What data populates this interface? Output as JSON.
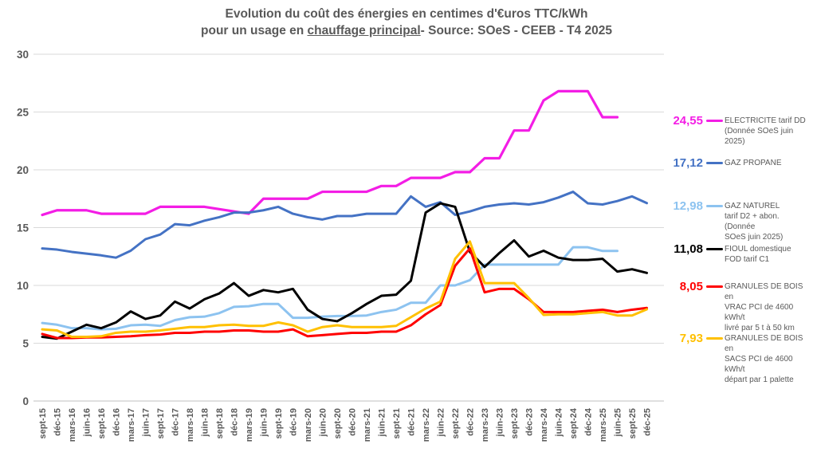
{
  "title": {
    "line1": "Evolution du coût des énergies en centimes d'€uros TTC/kWh",
    "line2_prefix": "pour un usage en ",
    "line2_underline": "chauffage principal",
    "line2_suffix": "- Source: SOeS - CEEB - T4 2025"
  },
  "colors": {
    "title_text": "#595959",
    "axis_text": "#595959",
    "gridline": "#d9d9d9",
    "axis_line": "#bfbfbf",
    "electricite": "#F31DE5",
    "gaz_propane": "#4472C4",
    "gaz_naturel": "#8DC3F0",
    "fioul": "#000000",
    "granules_vrac": "#FF0000",
    "granules_sacs": "#FFC000"
  },
  "legend": {
    "entries": [
      {
        "value": "24,55",
        "color": "#F31DE5",
        "label_lines": [
          "ELECTRICITE tarif DD",
          "(Donnée SOeS juin 2025)"
        ]
      },
      {
        "value": "17,12",
        "color": "#4472C4",
        "label_lines": [
          "GAZ PROPANE"
        ]
      },
      {
        "value": "12,98",
        "color": "#8DC3F0",
        "label_lines": [
          "GAZ NATUREL",
          "tarif D2 + abon. (Donnée",
          "SOeS juin 2025)"
        ]
      },
      {
        "value": "11,08",
        "color": "#000000",
        "label_lines": [
          "FIOUL domestique",
          "FOD tarif C1"
        ]
      },
      {
        "value": "8,05",
        "color": "#FF0000",
        "label_lines": [
          "GRANULES DE BOIS en",
          "VRAC  PCI de 4600 kWh/t",
          "livré par 5 t à 50 km"
        ]
      },
      {
        "value": "7,93",
        "color": "#FFC000",
        "label_lines": [
          "GRANULES DE BOIS en",
          "SACS PCI de 4600 kWh/t",
          "départ par 1 palette"
        ]
      }
    ]
  },
  "chart_data": {
    "type": "line",
    "title": "Evolution du coût des énergies en centimes d'€uros TTC/kWh pour un usage en chauffage principal - Source: SOeS - CEEB - T4 2025",
    "xlabel": "",
    "ylabel": "",
    "ylim": [
      0,
      30
    ],
    "ytick_step": 5,
    "grid": "horizontal",
    "legend_position": "right",
    "categories": [
      "sept-15",
      "déc-15",
      "mars-16",
      "juin-16",
      "sept-16",
      "déc-16",
      "mars-17",
      "juin-17",
      "sept-17",
      "déc-17",
      "mars-18",
      "juin-18",
      "sept-18",
      "déc-18",
      "mars-19",
      "juin-19",
      "sept-19",
      "déc-19",
      "mars-20",
      "juin-20",
      "sept-20",
      "déc-20",
      "mars-21",
      "juin-21",
      "sept-21",
      "déc-21",
      "mars-22",
      "juin-22",
      "sept-22",
      "déc-22",
      "mars-23",
      "juin-23",
      "sept-23",
      "déc-23",
      "mars-24",
      "juin-24",
      "sept-24",
      "déc-24",
      "mars-25",
      "juin-25",
      "sept-25",
      "déc-25"
    ],
    "series": [
      {
        "name": "ELECTRICITE tarif DD (Donnée SOeS juin 2025)",
        "color": "#F31DE5",
        "end_value": 24.55,
        "values": [
          16.1,
          16.5,
          16.5,
          16.5,
          16.2,
          16.2,
          16.2,
          16.2,
          16.8,
          16.8,
          16.8,
          16.8,
          16.6,
          16.4,
          16.2,
          17.5,
          17.5,
          17.5,
          17.5,
          18.1,
          18.1,
          18.1,
          18.1,
          18.6,
          18.6,
          19.3,
          19.3,
          19.3,
          19.8,
          19.8,
          21.0,
          21.0,
          23.4,
          23.4,
          26.0,
          26.8,
          26.8,
          26.8,
          24.55,
          24.55,
          null,
          null
        ]
      },
      {
        "name": "GAZ PROPANE",
        "color": "#4472C4",
        "end_value": 17.12,
        "values": [
          13.2,
          13.1,
          12.9,
          12.75,
          12.6,
          12.4,
          13.0,
          14.0,
          14.4,
          15.3,
          15.2,
          15.6,
          15.9,
          16.3,
          16.3,
          16.5,
          16.8,
          16.2,
          15.9,
          15.7,
          16.0,
          16.0,
          16.2,
          16.2,
          16.2,
          17.7,
          16.8,
          17.2,
          16.1,
          16.4,
          16.8,
          17.0,
          17.1,
          17.0,
          17.2,
          17.6,
          18.1,
          17.1,
          17.0,
          17.3,
          17.7,
          17.12
        ]
      },
      {
        "name": "GAZ NATUREL tarif D2 + abon. (Donnée SOeS juin 2025)",
        "color": "#8DC3F0",
        "end_value": 12.98,
        "values": [
          6.75,
          6.6,
          6.3,
          6.3,
          6.2,
          6.25,
          6.55,
          6.6,
          6.5,
          7.0,
          7.25,
          7.3,
          7.6,
          8.15,
          8.2,
          8.4,
          8.4,
          7.2,
          7.2,
          7.3,
          7.35,
          7.35,
          7.4,
          7.7,
          7.9,
          8.5,
          8.5,
          10.0,
          10.0,
          10.45,
          11.8,
          11.8,
          11.8,
          11.8,
          11.8,
          11.8,
          13.3,
          13.3,
          12.98,
          12.98,
          null,
          null
        ]
      },
      {
        "name": "FIOUL domestique FOD tarif C1",
        "color": "#000000",
        "end_value": 11.08,
        "values": [
          5.55,
          5.4,
          6.0,
          6.6,
          6.3,
          6.8,
          7.75,
          7.1,
          7.4,
          8.6,
          8.0,
          8.8,
          9.3,
          10.2,
          9.1,
          9.6,
          9.4,
          9.7,
          7.9,
          7.1,
          6.9,
          7.6,
          8.4,
          9.1,
          9.2,
          10.4,
          16.3,
          17.1,
          16.8,
          12.9,
          11.6,
          12.8,
          13.9,
          12.5,
          13.0,
          12.4,
          12.2,
          12.2,
          12.3,
          11.2,
          11.4,
          11.08
        ]
      },
      {
        "name": "GRANULES DE BOIS en VRAC PCI de 4600 kWh/t livré par 5 t à 50 km",
        "color": "#FF0000",
        "end_value": 8.05,
        "values": [
          5.8,
          5.45,
          5.45,
          5.5,
          5.5,
          5.55,
          5.6,
          5.7,
          5.75,
          5.9,
          5.9,
          6.0,
          6.0,
          6.1,
          6.1,
          6.0,
          6.0,
          6.2,
          5.6,
          5.7,
          5.8,
          5.9,
          5.9,
          6.0,
          6.0,
          6.55,
          7.5,
          8.3,
          11.7,
          13.2,
          9.4,
          9.7,
          9.7,
          8.8,
          7.7,
          7.7,
          7.7,
          7.8,
          7.9,
          7.7,
          7.9,
          8.05
        ]
      },
      {
        "name": "GRANULES DE BOIS en SACS PCI de 4600 kWh/t départ par 1 palette",
        "color": "#FFC000",
        "end_value": 7.93,
        "values": [
          6.2,
          6.1,
          5.55,
          5.55,
          5.6,
          5.9,
          6.0,
          6.0,
          6.1,
          6.25,
          6.4,
          6.4,
          6.55,
          6.6,
          6.5,
          6.5,
          6.8,
          6.55,
          6.0,
          6.4,
          6.55,
          6.4,
          6.4,
          6.4,
          6.5,
          7.25,
          8.0,
          8.6,
          12.3,
          13.8,
          10.2,
          10.2,
          10.2,
          8.9,
          7.45,
          7.5,
          7.5,
          7.6,
          7.7,
          7.4,
          7.4,
          7.93
        ]
      }
    ],
    "yticks": [
      0,
      5,
      10,
      15,
      20,
      25,
      30
    ]
  }
}
